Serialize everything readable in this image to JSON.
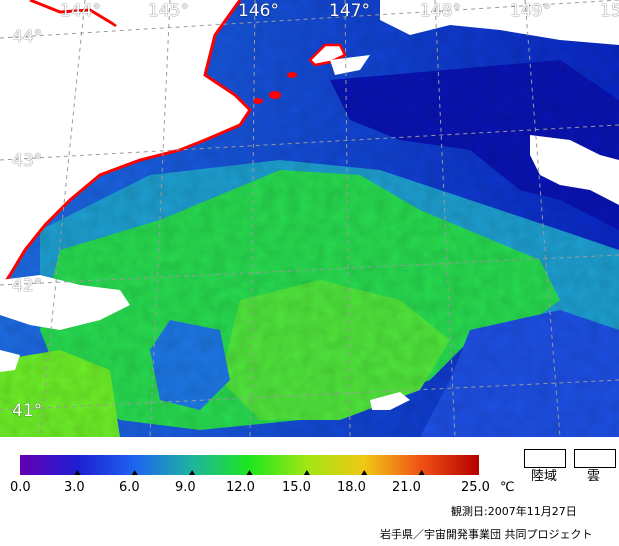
{
  "map": {
    "longitude_labels": [
      "144°",
      "145°",
      "146°",
      "147°",
      "148°",
      "149°",
      "15"
    ],
    "latitude_labels": [
      "44°",
      "43°",
      "42°",
      "41°"
    ],
    "colors": {
      "land": "#ffffff",
      "cloud": "#ffffff",
      "coastline": "#ff0000",
      "grid": "#9a9a9a",
      "deep_blue": "#0a1ec8",
      "blue": "#1e50e6",
      "teal": "#1ea0c8",
      "green": "#1ee63c",
      "yellow_green": "#78f028"
    }
  },
  "colorbar": {
    "ticks": [
      "0.0",
      "3.0",
      "6.0",
      "9.0",
      "12.0",
      "15.0",
      "18.0",
      "21.0",
      "25.0"
    ],
    "unit": "℃",
    "stops": [
      "#6400b4",
      "#1e1ed2",
      "#1e64f0",
      "#1eb4a0",
      "#1ee61e",
      "#a0e614",
      "#f0c814",
      "#f05014",
      "#b40000"
    ]
  },
  "legend": {
    "land_label": "陸域",
    "cloud_label": "雲"
  },
  "footer": {
    "observation_date": "観測日:2007年11月27日",
    "credit": "岩手県／宇宙開発事業団  共同プロジェクト"
  }
}
